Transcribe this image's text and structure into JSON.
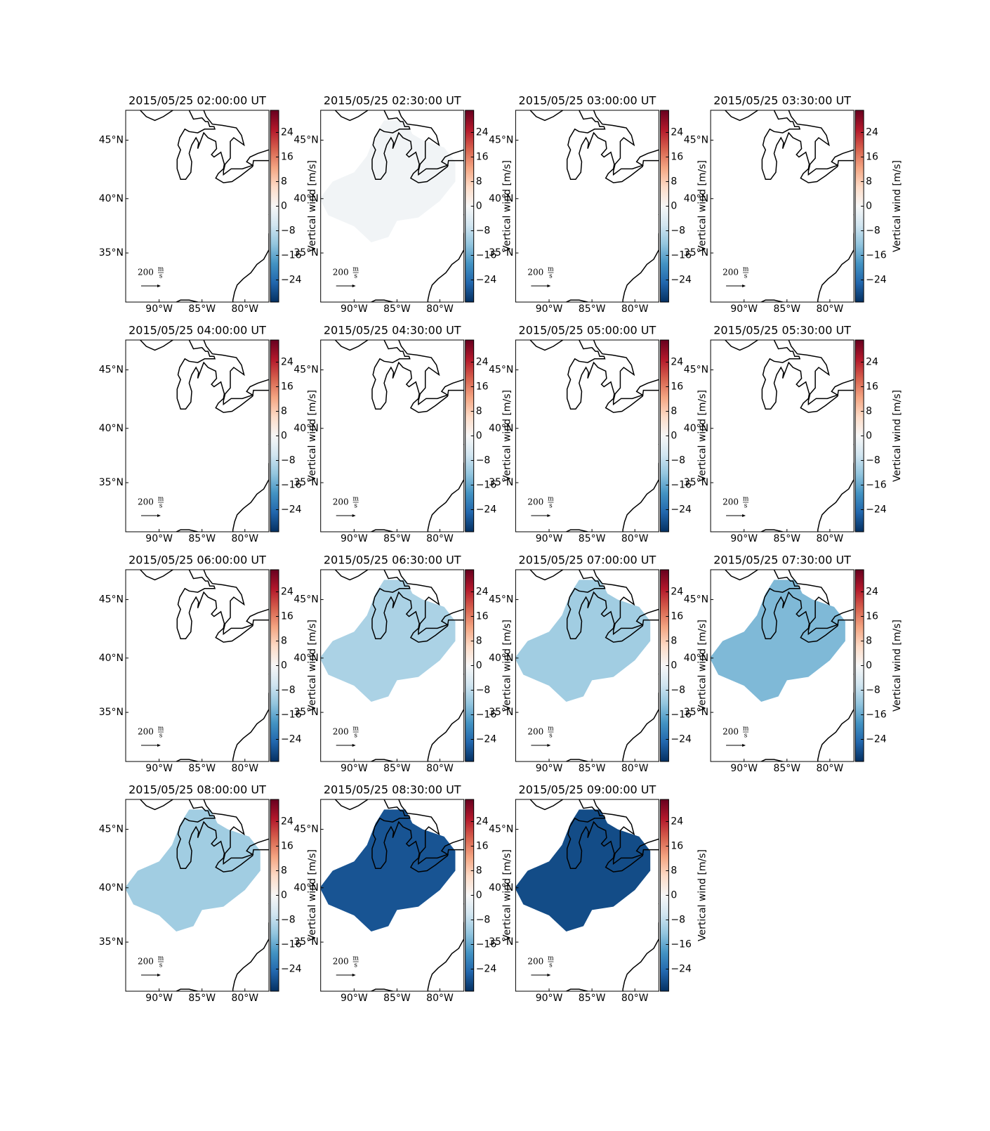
{
  "figure": {
    "lon_range": [
      -93.9,
      -77.2
    ],
    "lat_range": [
      30.2,
      47.4
    ],
    "lon_ticks": [
      {
        "value": -90,
        "label": "90°W"
      },
      {
        "value": -85,
        "label": "85°W"
      },
      {
        "value": -80,
        "label": "80°W"
      }
    ],
    "lat_ticks": [
      {
        "value": 45,
        "label": "45°N"
      },
      {
        "value": 40,
        "label": "40°N"
      },
      {
        "value": 35,
        "label": "35°N"
      }
    ],
    "colorbar": {
      "label": "Vertical wind [m/s]",
      "range": [
        -31.2,
        31.2
      ],
      "ticks": [
        {
          "value": 24,
          "label": "24"
        },
        {
          "value": 16,
          "label": "16"
        },
        {
          "value": 8,
          "label": "8"
        },
        0,
        {
          "value": -8,
          "label": "−8"
        },
        {
          "value": -16,
          "label": "−16"
        },
        {
          "value": -24,
          "label": "−24"
        }
      ],
      "colormap": [
        "#053061",
        "#2166ac",
        "#4393c3",
        "#92c5de",
        "#d1e5f0",
        "#f7f7f7",
        "#fddbc7",
        "#f4a582",
        "#d6604d",
        "#b2182b",
        "#67001f"
      ]
    },
    "scale_label": "200",
    "scale_unit_num": "m",
    "scale_unit_den": "s",
    "panels": [
      {
        "title": "2015/05/25 02:00:00 UT",
        "vertical_wind": null
      },
      {
        "title": "2015/05/25 02:30:00 UT",
        "vertical_wind": -1
      },
      {
        "title": "2015/05/25 03:00:00 UT",
        "vertical_wind": null
      },
      {
        "title": "2015/05/25 03:30:00 UT",
        "vertical_wind": null
      },
      {
        "title": "2015/05/25 04:00:00 UT",
        "vertical_wind": null
      },
      {
        "title": "2015/05/25 04:30:00 UT",
        "vertical_wind": null
      },
      {
        "title": "2015/05/25 05:00:00 UT",
        "vertical_wind": null
      },
      {
        "title": "2015/05/25 05:30:00 UT",
        "vertical_wind": null
      },
      {
        "title": "2015/05/25 06:00:00 UT",
        "vertical_wind": null
      },
      {
        "title": "2015/05/25 06:30:00 UT",
        "vertical_wind": -10
      },
      {
        "title": "2015/05/25 07:00:00 UT",
        "vertical_wind": -11
      },
      {
        "title": "2015/05/25 07:30:00 UT",
        "vertical_wind": -14
      },
      {
        "title": "2015/05/25 08:00:00 UT",
        "vertical_wind": -11
      },
      {
        "title": "2015/05/25 08:30:00 UT",
        "vertical_wind": -27
      },
      {
        "title": "2015/05/25 09:00:00 UT",
        "vertical_wind": -28
      }
    ]
  }
}
